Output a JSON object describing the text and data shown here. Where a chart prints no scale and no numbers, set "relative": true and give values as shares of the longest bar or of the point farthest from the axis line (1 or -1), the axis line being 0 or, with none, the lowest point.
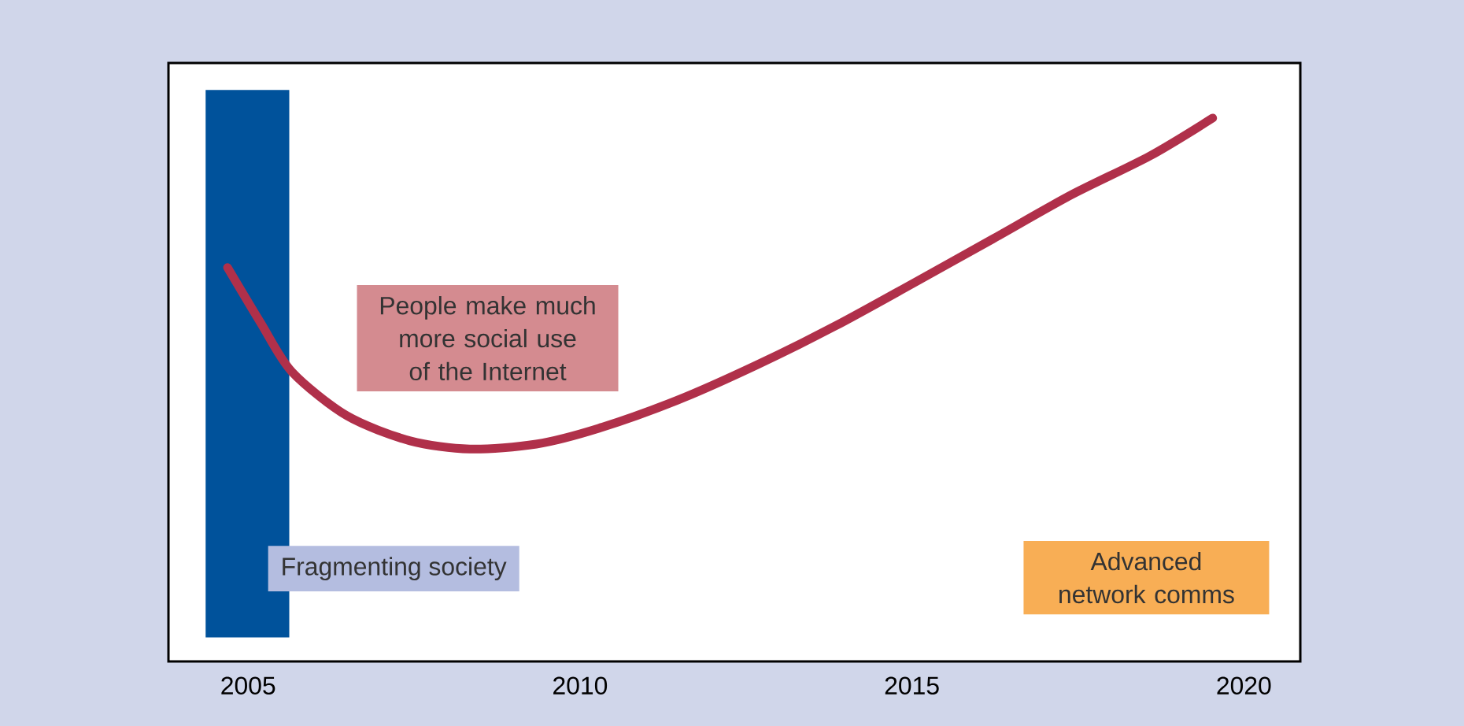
{
  "chart_data": {
    "type": "line",
    "relative": true,
    "xlim": [
      2003.8,
      2020.85
    ],
    "xticks": [
      2005,
      2010,
      2015,
      2020
    ],
    "series": [
      {
        "color": "#b0304a",
        "x": [
          2004.69,
          2005.19,
          2005.66,
          2006.49,
          2007.44,
          2008.34,
          2009.34,
          2010.28,
          2011.47,
          2012.65,
          2013.84,
          2015.02,
          2016.21,
          2017.39,
          2018.58,
          2019.53
        ],
        "values": [
          0.725,
          0.623,
          0.533,
          0.452,
          0.406,
          0.391,
          0.4,
          0.429,
          0.481,
          0.545,
          0.617,
          0.696,
          0.777,
          0.858,
          0.93,
          1.0
        ]
      }
    ],
    "bands": [
      {
        "axis": "x",
        "from": 2004.36,
        "to": 2005.62,
        "color": "#00529b"
      }
    ],
    "annotations": [
      "People make much more social use of the Internet",
      "Fragmenting society",
      "Advanced network comms"
    ],
    "grid": false
  }
}
